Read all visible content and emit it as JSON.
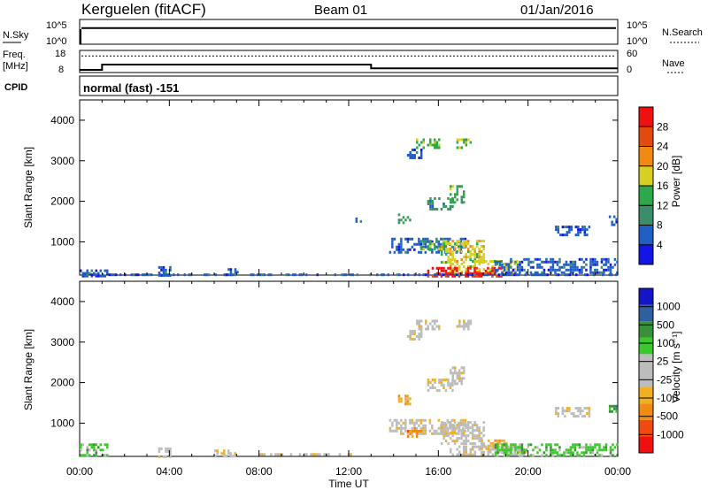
{
  "header": {
    "station": "Kerguelen (fitACF)",
    "beam": "Beam 01",
    "date": "01/Jan/2016"
  },
  "nsky_panel": {
    "label": "N.Sky",
    "ticks_left": [
      "10^5",
      "10^0"
    ],
    "ticks_right": [
      "10^5",
      "10^0"
    ],
    "right_label": "N.Search",
    "nsky_level": 0.65,
    "nsearch_level": 0.0
  },
  "freq_panel": {
    "label_line1": "Freq.",
    "label_line2": "[MHz]",
    "ticks_left": [
      "18",
      "8"
    ],
    "ticks_right": [
      "60",
      "0"
    ],
    "right_label": "Nave",
    "freq_steps": [
      {
        "from": 0.0,
        "to": 1.0,
        "mhz": 9.2
      },
      {
        "from": 1.0,
        "to": 13.0,
        "mhz": 11.6
      },
      {
        "from": 13.0,
        "to": 24.0,
        "mhz": 9.9
      }
    ],
    "nave_level": 45
  },
  "cpid_panel": {
    "label": "CPID",
    "text": "normal (fast) -151"
  },
  "colors": {
    "power_scale": [
      "#1414e6",
      "#1f5fc4",
      "#3a8f6a",
      "#2ea84a",
      "#d8d020",
      "#f08a10",
      "#e24a10",
      "#f01010"
    ],
    "velocity_scale": [
      "#f01010",
      "#f04a10",
      "#f08a10",
      "#f0b020",
      "#bcbcbc",
      "#bcbcbc",
      "#3ac82a",
      "#3a8f3a",
      "#2f5fa0",
      "#1414c8"
    ]
  },
  "chart_data": [
    {
      "type": "heatmap",
      "title": "",
      "ylabel": "Slant Range [km]",
      "xlabel": "",
      "colorbar_label": "Power [dB]",
      "colorbar_ticks": [
        "4",
        "8",
        "12",
        "16",
        "20",
        "24",
        "28"
      ],
      "xlim": [
        "00:00",
        "24:00"
      ],
      "ylim": [
        180,
        4500
      ],
      "yticks": [
        "1000",
        "2000",
        "3000",
        "4000"
      ],
      "regions": [
        {
          "t0": 15.0,
          "t1": 16.0,
          "r0": 3350,
          "r1": 3550,
          "level": 3
        },
        {
          "t0": 14.6,
          "t1": 15.2,
          "r0": 3050,
          "r1": 3300,
          "level": 1
        },
        {
          "t0": 16.8,
          "t1": 17.4,
          "r0": 3350,
          "r1": 3550,
          "level": 3
        },
        {
          "t0": 16.5,
          "t1": 17.1,
          "r0": 2000,
          "r1": 2400,
          "level": 3
        },
        {
          "t0": 15.5,
          "t1": 16.6,
          "r0": 1800,
          "r1": 2100,
          "level": 2
        },
        {
          "t0": 14.2,
          "t1": 14.7,
          "r0": 1450,
          "r1": 1700,
          "level": 3
        },
        {
          "t0": 12.3,
          "t1": 12.5,
          "r0": 1500,
          "r1": 1600,
          "level": 1
        },
        {
          "t0": 21.2,
          "t1": 22.7,
          "r0": 1200,
          "r1": 1400,
          "level": 1
        },
        {
          "t0": 23.6,
          "t1": 23.9,
          "r0": 1400,
          "r1": 1650,
          "level": 1
        },
        {
          "t0": 13.8,
          "t1": 17.2,
          "r0": 750,
          "r1": 1100,
          "level": 1
        },
        {
          "t0": 15.2,
          "t1": 16.4,
          "r0": 850,
          "r1": 1050,
          "level": 3
        },
        {
          "t0": 16.1,
          "t1": 18.0,
          "r0": 500,
          "r1": 1050,
          "level": 4
        },
        {
          "t0": 16.5,
          "t1": 19.5,
          "r0": 250,
          "r1": 550,
          "level": 4
        },
        {
          "t0": 15.5,
          "t1": 18.8,
          "r0": 180,
          "r1": 380,
          "level": 7
        },
        {
          "t0": 18.5,
          "t1": 24.0,
          "r0": 250,
          "r1": 600,
          "level": 1
        },
        {
          "t0": 0.0,
          "t1": 1.2,
          "r0": 180,
          "r1": 320,
          "level": 1
        },
        {
          "t0": 3.5,
          "t1": 4.0,
          "r0": 200,
          "r1": 400,
          "level": 1
        },
        {
          "t0": 6.5,
          "t1": 7.0,
          "r0": 200,
          "r1": 350,
          "level": 1
        },
        {
          "t0": 0.0,
          "t1": 24.0,
          "r0": 180,
          "r1": 220,
          "level": 1
        }
      ]
    },
    {
      "type": "heatmap",
      "title": "",
      "ylabel": "Slant Range [km]",
      "xlabel": "Time UT",
      "colorbar_label": "Velocity [m s⁻¹]",
      "colorbar_ticks": [
        "-1000",
        "-500",
        "-100",
        "-25",
        "25",
        "100",
        "500",
        "1000"
      ],
      "xlim": [
        "00:00",
        "24:00"
      ],
      "xticks": [
        "00:00",
        "04:00",
        "08:00",
        "12:00",
        "16:00",
        "20:00",
        "00:00"
      ],
      "ylim": [
        180,
        4500
      ],
      "yticks": [
        "1000",
        "2000",
        "3000",
        "4000"
      ],
      "regions": [
        {
          "t0": 15.0,
          "t1": 16.0,
          "r0": 3350,
          "r1": 3550,
          "level": 4
        },
        {
          "t0": 14.6,
          "t1": 15.2,
          "r0": 3050,
          "r1": 3300,
          "level": 4
        },
        {
          "t0": 16.8,
          "t1": 17.4,
          "r0": 3350,
          "r1": 3550,
          "level": 4
        },
        {
          "t0": 16.5,
          "t1": 17.1,
          "r0": 2000,
          "r1": 2400,
          "level": 4
        },
        {
          "t0": 15.5,
          "t1": 16.6,
          "r0": 1800,
          "r1": 2100,
          "level": 4
        },
        {
          "t0": 14.2,
          "t1": 14.7,
          "r0": 1450,
          "r1": 1700,
          "level": 3
        },
        {
          "t0": 21.2,
          "t1": 22.7,
          "r0": 1200,
          "r1": 1400,
          "level": 4
        },
        {
          "t0": 23.6,
          "t1": 23.9,
          "r0": 1300,
          "r1": 1450,
          "level": 7
        },
        {
          "t0": 13.8,
          "t1": 17.2,
          "r0": 750,
          "r1": 1100,
          "level": 4
        },
        {
          "t0": 14.6,
          "t1": 15.2,
          "r0": 700,
          "r1": 900,
          "level": 2
        },
        {
          "t0": 16.1,
          "t1": 18.0,
          "r0": 500,
          "r1": 1050,
          "level": 4
        },
        {
          "t0": 17.8,
          "t1": 19.0,
          "r0": 350,
          "r1": 600,
          "level": 3
        },
        {
          "t0": 16.5,
          "t1": 20.0,
          "r0": 200,
          "r1": 450,
          "level": 4
        },
        {
          "t0": 18.5,
          "t1": 24.0,
          "r0": 200,
          "r1": 500,
          "level": 6
        },
        {
          "t0": 0.0,
          "t1": 1.2,
          "r0": 200,
          "r1": 500,
          "level": 6
        },
        {
          "t0": 3.5,
          "t1": 4.0,
          "r0": 200,
          "r1": 400,
          "level": 4
        },
        {
          "t0": 6.0,
          "t1": 7.0,
          "r0": 200,
          "r1": 350,
          "level": 4
        },
        {
          "t0": 8.0,
          "t1": 12.5,
          "r0": 200,
          "r1": 260,
          "level": 4
        }
      ]
    }
  ]
}
